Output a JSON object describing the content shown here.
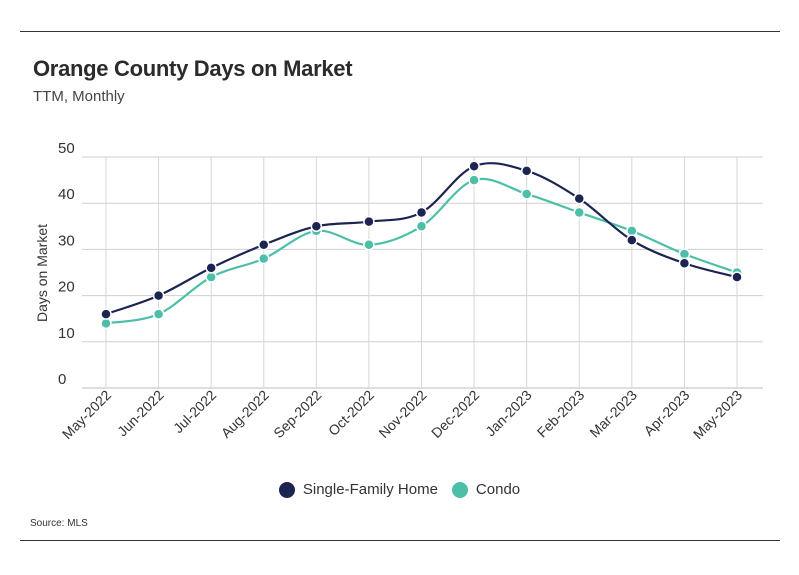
{
  "header": {
    "title": "Orange County Days on Market",
    "subtitle": "TTM, Monthly"
  },
  "footer": {
    "source": "Source:  MLS"
  },
  "chart_data": {
    "type": "line",
    "title": "Orange County Days on Market",
    "subtitle": "TTM, Monthly",
    "xlabel": "",
    "ylabel": "Days on Market",
    "ylim": [
      0,
      50
    ],
    "yticks": [
      0,
      10,
      20,
      30,
      40,
      50
    ],
    "grid": true,
    "legend_position": "bottom-center",
    "categories": [
      "May-2022",
      "Jun-2022",
      "Jul-2022",
      "Aug-2022",
      "Sep-2022",
      "Oct-2022",
      "Nov-2022",
      "Dec-2022",
      "Jan-2023",
      "Feb-2023",
      "Mar-2023",
      "Apr-2023",
      "May-2023"
    ],
    "series": [
      {
        "name": "Single-Family Home",
        "color": "#1c2551",
        "values": [
          16,
          20,
          26,
          31,
          35,
          36,
          38,
          48,
          47,
          41,
          32,
          27,
          24
        ]
      },
      {
        "name": "Condo",
        "color": "#4dbfa8",
        "values": [
          14,
          16,
          24,
          28,
          34,
          31,
          35,
          45,
          42,
          38,
          34,
          29,
          25
        ]
      }
    ]
  }
}
